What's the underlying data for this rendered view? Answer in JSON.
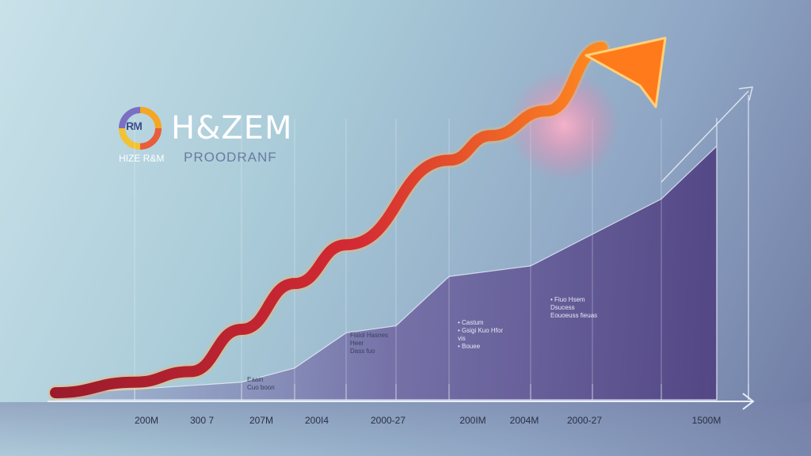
{
  "logo": {
    "mark_text": "RM",
    "wordmark": "H&ZEM",
    "subtitle_left": "HIZE R&M",
    "subtitle_right": "PROODRANF"
  },
  "colors": {
    "growth_line": "#c8232c",
    "growth_line_end": "#ff8a1e",
    "area_fill": "#5e4c8a",
    "axis": "#e8eef8"
  },
  "chart_data": {
    "type": "area",
    "title": "",
    "xlabel": "",
    "ylabel": "",
    "x_tick_labels": [
      "200M",
      "300 7",
      "207M",
      "200I4",
      "2000-27",
      "200IM",
      "2004M",
      "2000-27",
      "1500M"
    ],
    "series": [
      {
        "values": [
          2,
          5,
          8,
          20,
          33,
          44,
          68,
          75,
          82,
          100
        ]
      },
      {
        "values": [
          2,
          3,
          5,
          9,
          19,
          21,
          35,
          38,
          57,
          72,
          80
        ]
      }
    ],
    "annotations": [
      {
        "text": "Eaain\nCuo boon"
      },
      {
        "text": "Fisiol Hasnes\nHeer\nDass fuo"
      },
      {
        "text": "• Castum\n• Gsigi Kuo Hfor\n  vis\n• Bouee"
      },
      {
        "text": "• Fiuo Hsem\n  Dsucess\n  Eouoeuss fieuas"
      }
    ]
  }
}
